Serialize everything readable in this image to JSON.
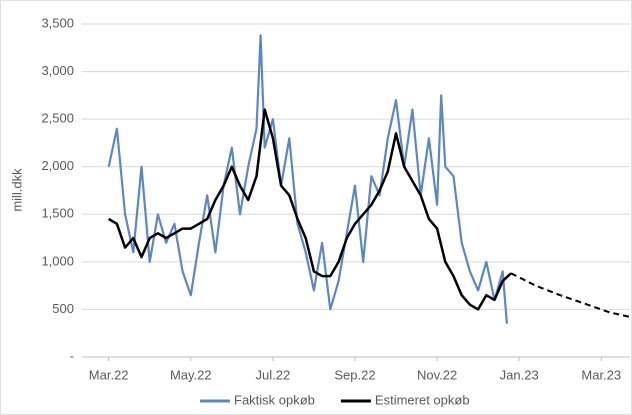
{
  "chart_data": {
    "type": "line",
    "ylabel": "mill.dkk",
    "ylim": [
      0,
      3500
    ],
    "yticks": [
      {
        "value": 0,
        "label": "-"
      },
      500,
      {
        "value": 1000,
        "label": "1,000"
      },
      {
        "value": 1500,
        "label": "1,500"
      },
      {
        "value": 2000,
        "label": "2,000"
      },
      {
        "value": 2500,
        "label": "2,500"
      },
      {
        "value": 3000,
        "label": "3,000"
      },
      {
        "value": 3500,
        "label": "3,500"
      }
    ],
    "xlim": [
      -0.65,
      12.7
    ],
    "xticks": [
      {
        "value": 0,
        "label": "Mar.22"
      },
      {
        "value": 2,
        "label": "May.22"
      },
      {
        "value": 4,
        "label": "Jul.22"
      },
      {
        "value": 6,
        "label": "Sep.22"
      },
      {
        "value": 8,
        "label": "Nov.22"
      },
      {
        "value": 10,
        "label": "Jan.23"
      },
      {
        "value": 12,
        "label": "Mar.23"
      }
    ],
    "grid": true,
    "legend": "bottom",
    "series": [
      {
        "name": "Faktisk opkøb",
        "color": "#5b87c5",
        "width": 2.2,
        "x": [
          0,
          0.2,
          0.4,
          0.6,
          0.8,
          1.0,
          1.2,
          1.4,
          1.6,
          1.8,
          2.0,
          2.2,
          2.4,
          2.6,
          2.8,
          3.0,
          3.2,
          3.4,
          3.6,
          3.7,
          3.8,
          4.0,
          4.2,
          4.4,
          4.6,
          4.8,
          5.0,
          5.2,
          5.4,
          5.6,
          5.8,
          6.0,
          6.2,
          6.4,
          6.6,
          6.8,
          7.0,
          7.2,
          7.4,
          7.6,
          7.8,
          8.0,
          8.1,
          8.2,
          8.4,
          8.6,
          8.8,
          9.0,
          9.2,
          9.4,
          9.6,
          9.7
        ],
        "values": [
          2000,
          2400,
          1500,
          1100,
          2000,
          1000,
          1500,
          1200,
          1400,
          900,
          650,
          1200,
          1700,
          1100,
          1800,
          2200,
          1500,
          2000,
          2400,
          3380,
          2200,
          2500,
          1800,
          2300,
          1400,
          1100,
          700,
          1200,
          500,
          800,
          1300,
          1800,
          1000,
          1900,
          1700,
          2300,
          2700,
          2000,
          2600,
          1700,
          2300,
          1600,
          2750,
          2000,
          1900,
          1200,
          900,
          700,
          1000,
          600,
          900,
          350
        ]
      },
      {
        "name": "Estimeret opkøb",
        "color": "#000000",
        "width": 2.5,
        "x": [
          0,
          0.2,
          0.4,
          0.6,
          0.8,
          1.0,
          1.2,
          1.4,
          1.6,
          1.8,
          2.0,
          2.2,
          2.4,
          2.6,
          2.8,
          3.0,
          3.2,
          3.4,
          3.6,
          3.8,
          4.0,
          4.2,
          4.4,
          4.6,
          4.8,
          5.0,
          5.2,
          5.4,
          5.6,
          5.8,
          6.0,
          6.2,
          6.4,
          6.6,
          6.8,
          7.0,
          7.2,
          7.4,
          7.6,
          7.8,
          8.0,
          8.2,
          8.4,
          8.6,
          8.8,
          9.0,
          9.2,
          9.4,
          9.6,
          9.8
        ],
        "values": [
          1450,
          1400,
          1150,
          1250,
          1050,
          1250,
          1300,
          1250,
          1300,
          1350,
          1350,
          1400,
          1450,
          1650,
          1800,
          2000,
          1800,
          1650,
          1900,
          2600,
          2300,
          1800,
          1700,
          1450,
          1250,
          900,
          850,
          850,
          1000,
          1250,
          1400,
          1500,
          1600,
          1750,
          1950,
          2350,
          2000,
          1850,
          1700,
          1450,
          1350,
          1000,
          850,
          650,
          550,
          500,
          650,
          600,
          800,
          880
        ]
      },
      {
        "color": "#000000",
        "width": 2,
        "dash": true,
        "x": [
          9.8,
          10.4,
          11,
          11.6,
          12.2,
          12.7
        ],
        "values": [
          880,
          750,
          650,
          560,
          470,
          420
        ]
      }
    ]
  }
}
